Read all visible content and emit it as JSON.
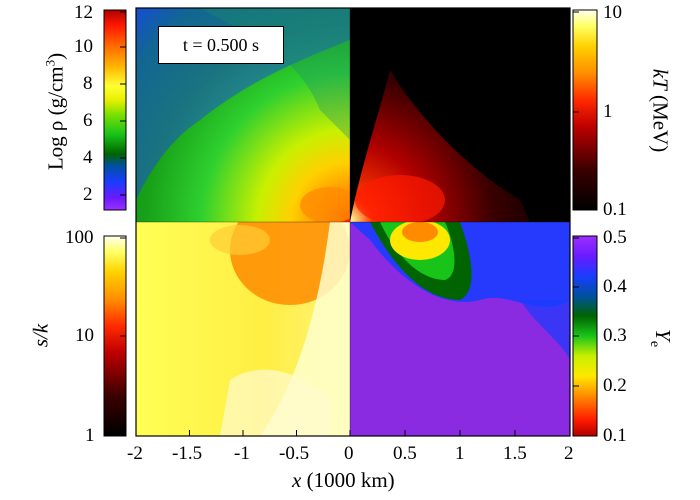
{
  "time_label": "t = 0.500 s",
  "x_axis": {
    "label_var": "x",
    "label_unit": "(1000 km)",
    "ticks": [
      "-2",
      "-1.5",
      "-1",
      "-0.5",
      "0",
      "0.5",
      "1",
      "1.5",
      "2"
    ]
  },
  "quadrants": {
    "top_left": "Log ρ (g/cm3)",
    "top_right": "kT (MeV)",
    "bottom_left": "s/k",
    "bottom_right": "Ye"
  },
  "colorbars": {
    "density": {
      "label_prefix": "Log ρ (g/cm",
      "label_sup": "3",
      "label_suffix": ")",
      "ticks": [
        "2",
        "4",
        "6",
        "8",
        "10",
        "12"
      ]
    },
    "temperature": {
      "label_var": "kT",
      "label_unit": "(MeV)",
      "ticks": [
        "0.1",
        "1",
        "10"
      ],
      "scale": "log"
    },
    "entropy": {
      "label": "s/k",
      "ticks": [
        "1",
        "10",
        "100"
      ],
      "scale": "log"
    },
    "electron_fraction": {
      "label_var": "Y",
      "label_sub": "e",
      "ticks": [
        "0.1",
        "0.2",
        "0.3",
        "0.4",
        "0.5"
      ]
    }
  },
  "colors": {
    "black": "#000000",
    "dark_red": "#5a0000",
    "red": "#e00000",
    "orange": "#ff8c00",
    "yellow": "#ffff33",
    "pale_yellow": "#ffffcc",
    "green": "#22cc22",
    "blue": "#1e3cff",
    "purple": "#8a2be2"
  }
}
